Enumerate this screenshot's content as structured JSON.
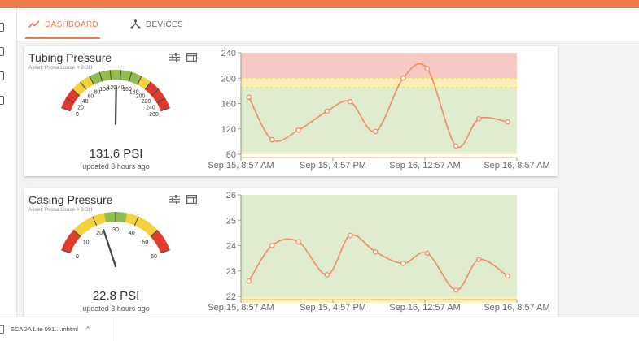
{
  "tabs": {
    "dashboard": "DASHBOARD",
    "devices": "DEVICES"
  },
  "colors": {
    "accent": "#ef7a4b",
    "zone_red": "#f7c9c4",
    "zone_yellow": "#fbefb5",
    "zone_green": "#dfeccd",
    "line": "#ef8a63"
  },
  "icons": [
    "line-chart-icon",
    "devices-icon",
    "sliders-icon",
    "table-icon",
    "chevron-up-icon"
  ],
  "cards": [
    {
      "title": "Tubing Pressure",
      "asset": "Asset: Pilosa Loose # 2-3H",
      "value_text": "131.6 PSI",
      "updated": "updated 3 hours ago",
      "gauge": {
        "min": 0,
        "max": 260,
        "value": 131.6,
        "ticks": [
          "0",
          "20",
          "40",
          "60",
          "80",
          "100",
          "120",
          "140",
          "160",
          "180",
          "200",
          "220",
          "240",
          "260"
        ],
        "zones": [
          {
            "from": 0,
            "to": 40,
            "color": "red"
          },
          {
            "from": 40,
            "to": 80,
            "color": "yellow"
          },
          {
            "from": 80,
            "to": 180,
            "color": "green"
          },
          {
            "from": 180,
            "to": 200,
            "color": "yellow"
          },
          {
            "from": 200,
            "to": 260,
            "color": "red"
          }
        ]
      },
      "chart_data": {
        "type": "line",
        "title": "",
        "xlabel": "",
        "ylabel": "",
        "x_ticks": [
          "Sep 15, 8:57 AM",
          "Sep 15, 4:57 PM",
          "Sep 16, 12:57 AM",
          "Sep 16, 8:57 AM"
        ],
        "y_ticks": [
          "80",
          "120",
          "160",
          "200",
          "240"
        ],
        "ylim": [
          80,
          240
        ],
        "grid": false,
        "bands": [
          {
            "from": 80,
            "to": 84,
            "color": "yellow"
          },
          {
            "from": 84,
            "to": 185,
            "color": "green"
          },
          {
            "from": 185,
            "to": 200,
            "color": "yellow"
          },
          {
            "from": 200,
            "to": 240,
            "color": "red"
          }
        ],
        "thresholds": [
          200,
          185
        ],
        "x_hours": [
          0.7,
          2.7,
          5.0,
          7.5,
          9.5,
          11.7,
          14.1,
          16.2,
          18.7,
          20.7,
          23.2
        ],
        "values": [
          170,
          103,
          118,
          148,
          163,
          116,
          200,
          215,
          93,
          136,
          131
        ]
      }
    },
    {
      "title": "Casing Pressure",
      "asset": "Asset: Pilosa Loose # 2-3H",
      "value_text": "22.8 PSI",
      "updated": "updated 3 hours ago",
      "gauge": {
        "min": 0,
        "max": 60,
        "value": 22.8,
        "ticks": [
          "0",
          "10",
          "20",
          "30",
          "40",
          "50",
          "60"
        ],
        "zones": [
          {
            "from": 0,
            "to": 10,
            "color": "red"
          },
          {
            "from": 10,
            "to": 25,
            "color": "yellow"
          },
          {
            "from": 25,
            "to": 35,
            "color": "green"
          },
          {
            "from": 35,
            "to": 50,
            "color": "yellow"
          },
          {
            "from": 50,
            "to": 60,
            "color": "red"
          }
        ]
      },
      "chart_data": {
        "type": "line",
        "title": "",
        "xlabel": "",
        "ylabel": "",
        "x_ticks": [
          "Sep 15, 8:57 AM",
          "Sep 15, 4:57 PM",
          "Sep 16, 12:57 AM",
          "Sep 16, 8:57 AM"
        ],
        "y_ticks": [
          "22",
          "23",
          "24",
          "25",
          "26"
        ],
        "ylim": [
          22,
          26
        ],
        "grid": false,
        "bands": [
          {
            "from": 21.75,
            "to": 22,
            "color": "yellow"
          },
          {
            "from": 22,
            "to": 26,
            "color": "green"
          }
        ],
        "thresholds": [],
        "x_hours": [
          0.7,
          2.7,
          5.0,
          7.5,
          9.5,
          11.7,
          14.1,
          16.2,
          18.7,
          20.7,
          23.2
        ],
        "values": [
          22.6,
          24.0,
          24.15,
          22.85,
          24.4,
          23.75,
          23.3,
          23.7,
          22.25,
          23.45,
          22.8
        ]
      }
    }
  ],
  "download": {
    "filename": "SCADA Lite 091....mhtml"
  }
}
